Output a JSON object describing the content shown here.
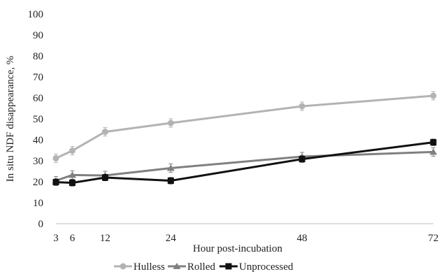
{
  "chart_data": {
    "type": "line",
    "xlabel": "Hour post-incubation",
    "ylabel": "In situ NDF disappearance, %",
    "x": [
      3,
      6,
      12,
      24,
      48,
      72
    ],
    "xlim": [
      3,
      72
    ],
    "ylim": [
      0,
      100
    ],
    "yticks": [
      0,
      10,
      20,
      30,
      40,
      50,
      60,
      70,
      80,
      90,
      100
    ],
    "grid": false,
    "legend_position": "bottom",
    "series": [
      {
        "name": "Hulless",
        "values": [
          31.2,
          34.8,
          43.8,
          48.0,
          56.0,
          61.0
        ],
        "errors": [
          2,
          2,
          2,
          2,
          2,
          2
        ],
        "color": "#b3b3b3",
        "marker": "circle"
      },
      {
        "name": "Rolled",
        "values": [
          20.5,
          23.2,
          23.0,
          26.5,
          32.0,
          34.2
        ],
        "errors": [
          2,
          2,
          2,
          2,
          2,
          2
        ],
        "color": "#808080",
        "marker": "triangle"
      },
      {
        "name": "Unprocessed",
        "values": [
          19.8,
          19.5,
          22.0,
          20.5,
          30.8,
          38.8
        ],
        "errors": [
          1.5,
          1.5,
          1.5,
          1.5,
          1.5,
          1.5
        ],
        "color": "#111111",
        "marker": "square"
      }
    ]
  }
}
